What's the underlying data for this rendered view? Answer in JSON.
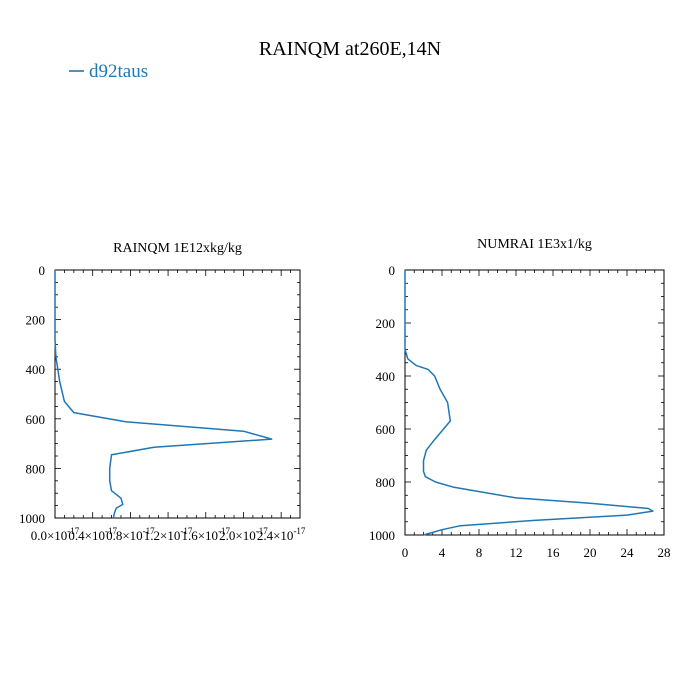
{
  "figure": {
    "title": "RAINQM at260E,14N",
    "legend": [
      {
        "label": "d92taus",
        "color": "#1f77b4"
      }
    ]
  },
  "chart_data": [
    {
      "type": "line",
      "title": "RAINQM  1E12xkg/kg",
      "xlabel": "",
      "ylabel": "",
      "xlim": [
        0,
        2.6e-17
      ],
      "ylim": [
        1000,
        0
      ],
      "y_inverted": true,
      "x_tick_labels": [
        "0.0×10",
        "0.4×10",
        "0.8×10",
        "1.2×10",
        "1.6×10",
        "2.0×10",
        "2.4×10"
      ],
      "x_tick_exponent": "-17",
      "y_tick_labels": [
        "0",
        "200",
        "400",
        "600",
        "800",
        "1000"
      ],
      "series": [
        {
          "name": "d92taus",
          "color": "#1f77b4",
          "x": [
            0,
            0,
            1e-19,
            5e-19,
            1e-18,
            2e-18,
            7.5e-18,
            2e-17,
            2.3e-17,
            1.05e-17,
            6e-18,
            5.8e-18,
            5.8e-18,
            6e-18,
            7e-18,
            7.2e-18,
            6.5e-18,
            6.3e-18,
            6.2e-18
          ],
          "y": [
            0,
            280,
            350,
            450,
            530,
            575,
            612,
            650,
            682,
            715,
            745,
            800,
            850,
            890,
            920,
            945,
            960,
            980,
            1000
          ]
        }
      ]
    },
    {
      "type": "line",
      "title": "NUMRAI  1E3x1/kg",
      "xlabel": "",
      "ylabel": "",
      "xlim": [
        0,
        28
      ],
      "ylim": [
        1000,
        0
      ],
      "y_inverted": true,
      "x_tick_labels": [
        "0",
        "4",
        "8",
        "12",
        "16",
        "20",
        "24",
        "28"
      ],
      "y_tick_labels": [
        "0",
        "200",
        "400",
        "600",
        "800",
        "1000"
      ],
      "series": [
        {
          "name": "d92taus",
          "color": "#1f77b4",
          "x": [
            0,
            0,
            0.3,
            1.2,
            2.5,
            3.2,
            3.8,
            4.6,
            4.9,
            3.2,
            2.3,
            2.0,
            2.0,
            2.2,
            3.3,
            5.3,
            12.0,
            20.0,
            26.3,
            26.8,
            24.0,
            14.0,
            6.0,
            4.0,
            3.0,
            2.0
          ],
          "y": [
            0,
            300,
            335,
            360,
            375,
            400,
            450,
            500,
            570,
            640,
            680,
            720,
            760,
            780,
            800,
            820,
            860,
            880,
            900,
            910,
            925,
            945,
            965,
            980,
            990,
            1000
          ]
        }
      ]
    }
  ]
}
